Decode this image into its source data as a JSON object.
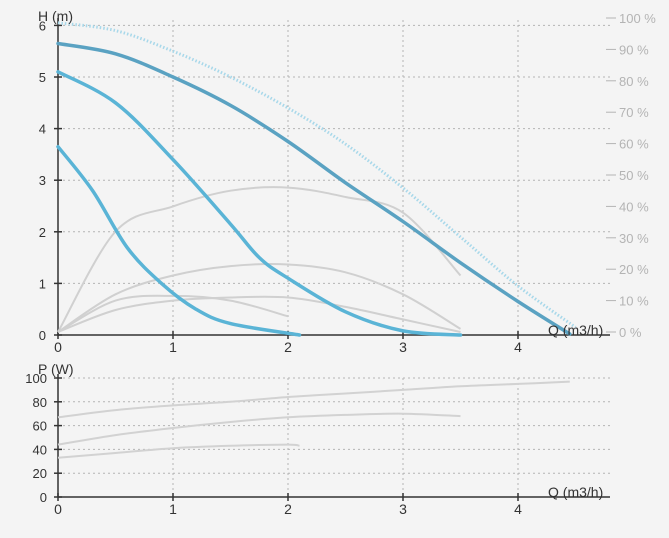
{
  "colors": {
    "background": "#f4f4f4",
    "grid": "#b4b4b4",
    "axis": "#333333",
    "pump_curve": "#5ab4d6",
    "pump_curve_dark": "#5aa2c2",
    "pump_curve_max": "#a8d8ea",
    "efficiency": "#d0d0d0",
    "power": "#d2d2d2",
    "right_axis_text": "#b4b4b4"
  },
  "chart_data": [
    {
      "type": "line",
      "panel": "head",
      "ylabel": "H (m)",
      "xlabel": "Q (m3/h)",
      "xlim": [
        0,
        4.6
      ],
      "ylim": [
        0,
        6
      ],
      "x_ticks": [
        "0",
        "1",
        "2",
        "3",
        "4"
      ],
      "y_ticks": [
        "0",
        "1",
        "2",
        "3",
        "4",
        "5",
        "6"
      ],
      "y2_label": "",
      "y2_ticks": [
        "0 %",
        "10 %",
        "20 %",
        "30 %",
        "40 %",
        "50 %",
        "60 %",
        "70 %",
        "80 %",
        "90 %",
        "100 %"
      ],
      "y2lim": [
        0,
        100
      ],
      "grid": true,
      "series": [
        {
          "role": "max",
          "style": "dotted",
          "x": [
            0,
            0.5,
            1,
            1.5,
            2,
            2.5,
            3,
            3.5,
            4,
            4.5
          ],
          "y": [
            6.05,
            5.9,
            5.5,
            5.0,
            4.4,
            3.7,
            2.85,
            1.9,
            0.95,
            0.15
          ]
        },
        {
          "role": "speed3",
          "style": "solid",
          "x": [
            0,
            0.5,
            1,
            1.5,
            2,
            2.5,
            3,
            3.5,
            4,
            4.45
          ],
          "y": [
            5.65,
            5.45,
            5.0,
            4.45,
            3.75,
            2.95,
            2.2,
            1.4,
            0.65,
            0.02
          ]
        },
        {
          "role": "speed2",
          "style": "solid",
          "x": [
            0,
            0.5,
            1,
            1.5,
            1.75,
            2,
            2.5,
            3,
            3.5
          ],
          "y": [
            5.1,
            4.5,
            3.4,
            2.15,
            1.5,
            1.1,
            0.45,
            0.08,
            0.0
          ]
        },
        {
          "role": "speed1",
          "style": "solid",
          "x": [
            0,
            0.3,
            0.6,
            0.9,
            1.2,
            1.5,
            2.1
          ],
          "y": [
            3.65,
            2.8,
            1.7,
            1.0,
            0.5,
            0.22,
            0.0
          ]
        },
        {
          "role": "eff1",
          "style": "efficiency",
          "x": [
            0,
            0.5,
            1,
            1.5,
            2,
            2.5,
            3,
            3.5
          ],
          "y2": [
            0,
            32,
            40,
            45,
            46,
            43,
            38,
            18
          ]
        },
        {
          "role": "eff2",
          "style": "efficiency",
          "x": [
            0,
            0.5,
            1,
            1.5,
            2,
            2.5,
            3,
            3.5
          ],
          "y2": [
            0,
            7,
            10,
            11,
            11,
            8,
            4,
            0
          ]
        },
        {
          "role": "eff3",
          "style": "efficiency",
          "x": [
            0,
            0.5,
            1,
            1.5,
            2,
            2.5,
            3,
            3.5
          ],
          "y2": [
            0,
            12,
            18,
            21,
            21.5,
            19,
            12,
            1
          ]
        },
        {
          "role": "eff4",
          "style": "efficiency",
          "x": [
            0,
            0.5,
            1,
            1.5,
            2
          ],
          "y2": [
            0,
            10,
            11.5,
            10,
            5
          ]
        }
      ]
    },
    {
      "type": "line",
      "panel": "power",
      "ylabel": "P (W)",
      "xlabel": "Q (m3/h)",
      "xlim": [
        0,
        4.6
      ],
      "ylim": [
        0,
        100
      ],
      "x_ticks": [
        "0",
        "1",
        "2",
        "3",
        "4"
      ],
      "y_ticks": [
        "0",
        "20",
        "40",
        "60",
        "80",
        "100"
      ],
      "grid": true,
      "series": [
        {
          "role": "power3",
          "x": [
            0,
            0.5,
            1,
            1.5,
            2,
            2.5,
            3,
            3.5,
            4,
            4.45
          ],
          "y": [
            67,
            73,
            77,
            80,
            84,
            87,
            90,
            93,
            95,
            97
          ]
        },
        {
          "role": "power2",
          "x": [
            0,
            0.5,
            1,
            1.5,
            2,
            2.5,
            3,
            3.5
          ],
          "y": [
            44,
            52,
            58,
            63,
            67,
            69,
            70,
            68
          ]
        },
        {
          "role": "power1",
          "x": [
            0,
            0.5,
            1,
            1.5,
            2,
            2.1
          ],
          "y": [
            33,
            37,
            41,
            43,
            44,
            43
          ]
        }
      ]
    }
  ]
}
